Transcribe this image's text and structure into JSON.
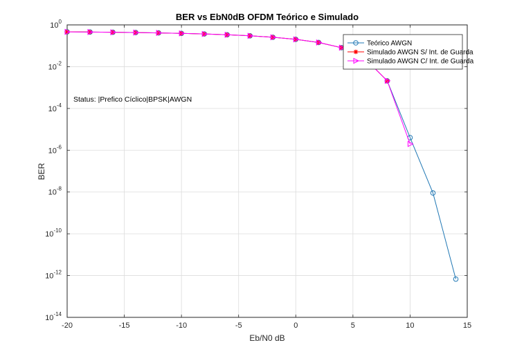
{
  "chart_data": {
    "type": "line",
    "title": "BER vs EbN0dB OFDM Teórico e Simulado",
    "xlabel": "Eb/N0 dB",
    "ylabel": "BER",
    "xlim": [
      -20,
      15
    ],
    "ylim": [
      1e-14,
      1
    ],
    "yscale": "log",
    "grid": true,
    "legend_position": "top-right",
    "xticks": [
      "-20",
      "-15",
      "-10",
      "-5",
      "0",
      "5",
      "10",
      "15"
    ],
    "yticks": [
      {
        "base": "10",
        "exp": "0"
      },
      {
        "base": "10",
        "exp": "-2"
      },
      {
        "base": "10",
        "exp": "-4"
      },
      {
        "base": "10",
        "exp": "-6"
      },
      {
        "base": "10",
        "exp": "-8"
      },
      {
        "base": "10",
        "exp": "-10"
      },
      {
        "base": "10",
        "exp": "-12"
      },
      {
        "base": "10",
        "exp": "-14"
      }
    ],
    "annotation": "Status: |Prefico Cíclico|BPSK|AWGN",
    "series": [
      {
        "name": "Teórico AWGN",
        "color": "#1f77b4",
        "marker": "circle",
        "x": [
          -20,
          -18,
          -16,
          -14,
          -12,
          -10,
          -8,
          -6,
          -4,
          -2,
          0,
          2,
          4,
          6,
          8,
          10,
          12,
          14
        ],
        "y": [
          0.4645,
          0.4553,
          0.4441,
          0.4304,
          0.4136,
          0.393,
          0.3679,
          0.3373,
          0.3002,
          0.2557,
          0.2033,
          0.1436,
          0.0812,
          0.0263,
          0.0021,
          4e-06,
          9e-09,
          6.8e-13
        ]
      },
      {
        "name": "Simulado AWGN S/ Int. de Guarda",
        "color": "#ff0000",
        "marker": "asterisk",
        "x": [
          -20,
          -18,
          -16,
          -14,
          -12,
          -10,
          -8,
          -6,
          -4,
          -2,
          0,
          2,
          4,
          6,
          8
        ],
        "y": [
          0.465,
          0.4555,
          0.444,
          0.43,
          0.414,
          0.393,
          0.368,
          0.337,
          0.3,
          0.256,
          0.203,
          0.144,
          0.081,
          0.0265,
          0.0021
        ]
      },
      {
        "name": "Simulado AWGN C/ Int. de Guarda",
        "color": "#ff00ff",
        "marker": "triangle-right",
        "x": [
          -20,
          -18,
          -16,
          -14,
          -12,
          -10,
          -8,
          -6,
          -4,
          -2,
          0,
          2,
          4,
          6,
          8,
          10
        ],
        "y": [
          0.464,
          0.455,
          0.444,
          0.43,
          0.413,
          0.393,
          0.368,
          0.337,
          0.3,
          0.255,
          0.203,
          0.144,
          0.081,
          0.026,
          0.0021,
          2e-06
        ]
      }
    ]
  }
}
